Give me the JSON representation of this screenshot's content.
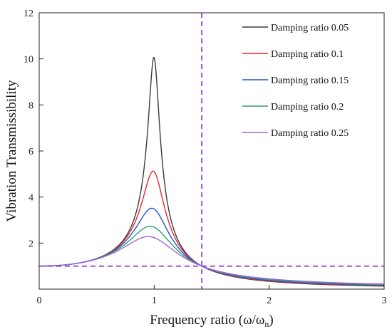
{
  "chart_data": {
    "type": "line",
    "title": "",
    "xlabel": "Frequency ratio (ω/ω",
    "xlabel_sub": "n",
    "xlabel_close": ")",
    "ylabel": "Vibration Transmissibility",
    "xlim": [
      0,
      3
    ],
    "ylim": [
      0,
      12
    ],
    "x_ticks": [
      0,
      1,
      2,
      3
    ],
    "y_ticks": [
      2,
      4,
      6,
      8,
      10,
      12
    ],
    "grid": false,
    "legend_position": "top-right",
    "series": [
      {
        "name": "Damping ratio 0.05",
        "zeta": 0.05,
        "color": "#3a3a3a",
        "peak": 10.05
      },
      {
        "name": "Damping ratio 0.1",
        "zeta": 0.1,
        "color": "#e8252b",
        "peak": 5.1
      },
      {
        "name": "Damping ratio 0.15",
        "zeta": 0.15,
        "color": "#2255cc",
        "peak": 3.5
      },
      {
        "name": "Damping ratio 0.2",
        "zeta": 0.2,
        "color": "#2f9e6e",
        "peak": 2.7
      },
      {
        "name": "Damping ratio 0.25",
        "zeta": 0.25,
        "color": "#a066d8",
        "peak": 2.25
      }
    ],
    "reference_lines": [
      {
        "orientation": "vertical",
        "x": 1.414,
        "color": "#7a2be0"
      },
      {
        "orientation": "horizontal",
        "y": 1,
        "color": "#7a2be0"
      }
    ]
  }
}
